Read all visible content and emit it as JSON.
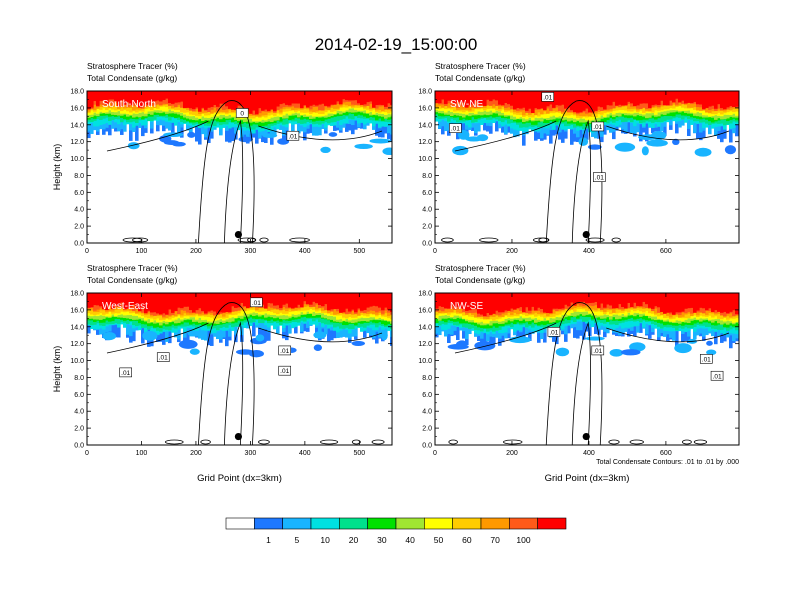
{
  "title": "2014-02-19_15:00:00",
  "colorbar": {
    "colors": [
      "#ffffff",
      "#1e78ff",
      "#19b4ff",
      "#00e1e1",
      "#00e18c",
      "#00e100",
      "#a0e632",
      "#ffff00",
      "#ffcc00",
      "#ff9900",
      "#ff5a19",
      "#ff0000"
    ],
    "labels": [
      "1",
      "5",
      "10",
      "20",
      "30",
      "40",
      "50",
      "60",
      "70",
      "100"
    ]
  },
  "footnote": "Total Condensate Contours: .01 to .01 by .000",
  "chart_data": [
    {
      "type": "heatmap",
      "panel_label": "South-North",
      "title_lines": [
        "Stratosphere Tracer   (%)",
        "Total Condensate   (g/kg)"
      ],
      "ylabel": "Height (km)",
      "xlabel": "",
      "xlim": [
        0,
        560
      ],
      "ylim": [
        0,
        18
      ],
      "xticks": [
        0,
        100,
        200,
        300,
        400,
        500
      ],
      "yticks": [
        "0.0",
        "2.0",
        "4.0",
        "6.0",
        "8.0",
        "10.0",
        "12.0",
        "14.0",
        "16.0",
        "18.0"
      ],
      "marker": {
        "x": 278,
        "y": 1.0
      },
      "contour_labels": [
        {
          "text": "0",
          "x": 285,
          "y": 15.4
        },
        {
          "text": ".01",
          "x": 378,
          "y": 12.7
        }
      ]
    },
    {
      "type": "heatmap",
      "panel_label": "SW-NE",
      "title_lines": [
        "Stratosphere Tracer   (%)",
        "Total Condensate   (g/kg)"
      ],
      "ylabel": "",
      "xlabel": "",
      "xlim": [
        0,
        790
      ],
      "ylim": [
        0,
        18
      ],
      "xticks": [
        0,
        200,
        400,
        600
      ],
      "yticks": [
        "0.0",
        "2.0",
        "4.0",
        "6.0",
        "8.0",
        "10.0",
        "12.0",
        "14.0",
        "16.0",
        "18.0"
      ],
      "marker": {
        "x": 393,
        "y": 1.0
      },
      "contour_labels": [
        {
          "text": ".01",
          "x": 53,
          "y": 13.6
        },
        {
          "text": ".01",
          "x": 293,
          "y": 17.3
        },
        {
          "text": ".01",
          "x": 423,
          "y": 13.8
        },
        {
          "text": ".01",
          "x": 427,
          "y": 7.8
        }
      ]
    },
    {
      "type": "heatmap",
      "panel_label": "West-East",
      "title_lines": [
        "Stratosphere Tracer   (%)",
        "Total Condensate   (g/kg)"
      ],
      "ylabel": "Height (km)",
      "xlabel": "Grid Point (dx=3km)",
      "xlim": [
        0,
        560
      ],
      "ylim": [
        0,
        18
      ],
      "xticks": [
        0,
        100,
        200,
        300,
        400,
        500
      ],
      "yticks": [
        "0.0",
        "2.0",
        "4.0",
        "6.0",
        "8.0",
        "10.0",
        "12.0",
        "14.0",
        "16.0",
        "18.0"
      ],
      "marker": {
        "x": 278,
        "y": 1.0
      },
      "contour_labels": [
        {
          "text": ".01",
          "x": 311,
          "y": 16.9
        },
        {
          "text": ".01",
          "x": 140,
          "y": 10.4
        },
        {
          "text": ".01",
          "x": 71,
          "y": 8.6
        },
        {
          "text": ".01",
          "x": 363,
          "y": 11.2
        },
        {
          "text": ".01",
          "x": 363,
          "y": 8.8
        }
      ]
    },
    {
      "type": "heatmap",
      "panel_label": "NW-SE",
      "title_lines": [
        "Stratosphere Tracer   (%)",
        "Total Condensate   (g/kg)"
      ],
      "ylabel": "",
      "xlabel": "Grid Point (dx=3km)",
      "xlim": [
        0,
        790
      ],
      "ylim": [
        0,
        18
      ],
      "xticks": [
        0,
        200,
        400,
        600
      ],
      "yticks": [
        "0.0",
        "2.0",
        "4.0",
        "6.0",
        "8.0",
        "10.0",
        "12.0",
        "14.0",
        "16.0",
        "18.0"
      ],
      "marker": {
        "x": 393,
        "y": 1.0
      },
      "contour_labels": [
        {
          "text": ".01",
          "x": 309,
          "y": 13.4
        },
        {
          "text": ".01",
          "x": 423,
          "y": 11.2
        },
        {
          "text": ".01",
          "x": 705,
          "y": 10.2
        },
        {
          "text": ".01",
          "x": 733,
          "y": 8.2
        }
      ]
    }
  ]
}
